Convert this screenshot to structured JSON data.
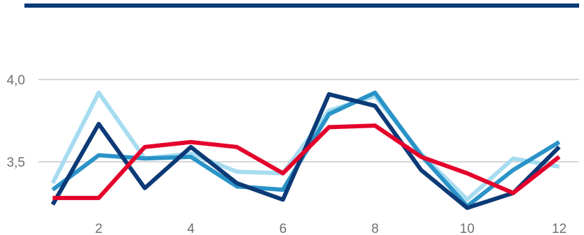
{
  "chart_data": {
    "type": "line",
    "title": "",
    "xlabel": "",
    "ylabel": "",
    "x": [
      1,
      2,
      3,
      4,
      5,
      6,
      7,
      8,
      9,
      10,
      11,
      12
    ],
    "xticks": [
      "2",
      "4",
      "6",
      "8",
      "10",
      "12"
    ],
    "yticks": [
      "3,5",
      "4,0"
    ],
    "ylim": [
      3.2,
      4.0
    ],
    "grid": "horizontal",
    "legend": "none",
    "header_bar_color": "#0a3a78",
    "series": [
      {
        "color": "#a6dcf0",
        "values": [
          3.37,
          3.92,
          3.52,
          3.55,
          3.44,
          3.43,
          3.81,
          3.9,
          3.55,
          3.27,
          3.52,
          3.47
        ]
      },
      {
        "color": "#2a93c8",
        "values": [
          3.33,
          3.54,
          3.52,
          3.53,
          3.35,
          3.33,
          3.79,
          3.92,
          3.54,
          3.23,
          3.45,
          3.62
        ]
      },
      {
        "color": "#0c3a76",
        "values": [
          3.24,
          3.73,
          3.34,
          3.59,
          3.37,
          3.27,
          3.91,
          3.84,
          3.45,
          3.22,
          3.31,
          3.59
        ]
      },
      {
        "color": "#e4002b",
        "values": [
          3.28,
          3.28,
          3.59,
          3.62,
          3.59,
          3.43,
          3.71,
          3.72,
          3.53,
          3.43,
          3.31,
          3.53
        ]
      }
    ]
  }
}
